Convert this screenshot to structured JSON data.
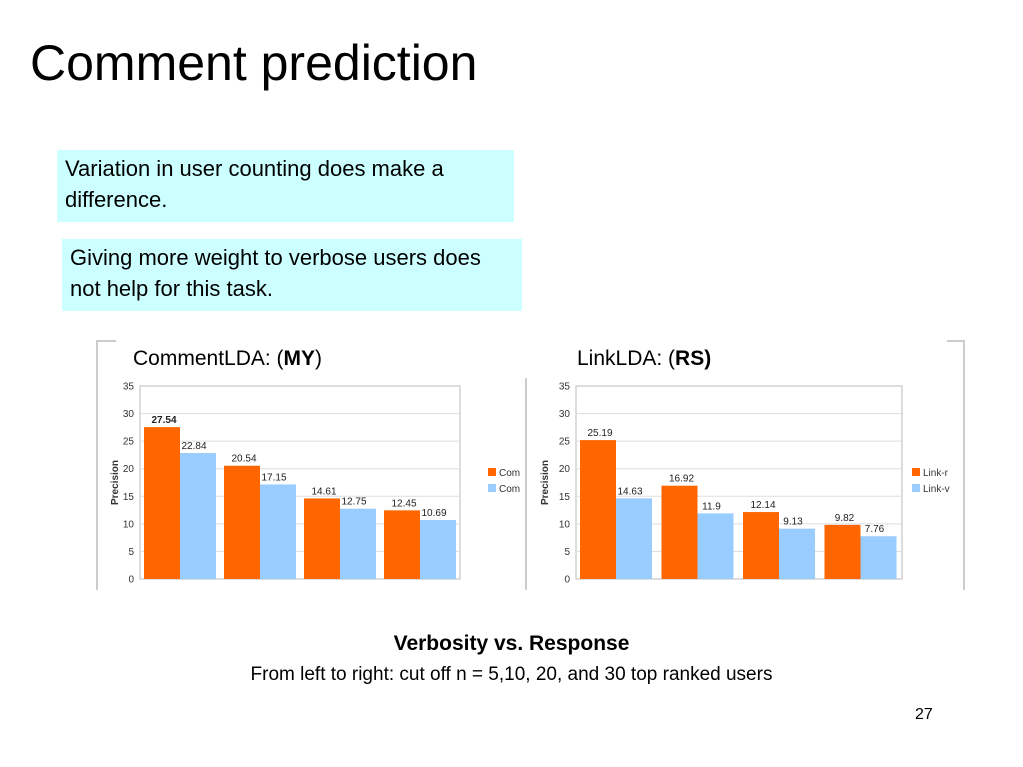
{
  "slide": {
    "title": "Comment prediction",
    "callout1": "Variation in user counting does make a difference.",
    "callout2": "Giving more weight to verbose users does not help for this task.",
    "caption_title": "Verbosity vs. Response",
    "caption_subtitle": "From left to right: cut off n = 5,10, 20, and 30 top ranked users",
    "page_number": "27",
    "colors": {
      "orange": "#ff6600",
      "blue": "#99ccff",
      "callout_bg": "#ccffff"
    }
  },
  "chart_data": [
    {
      "type": "bar",
      "label_prefix": "CommentLDA: (",
      "label_bold": "MY",
      "label_suffix": ")",
      "ylabel": "Precision",
      "ylim": [
        0,
        35
      ],
      "yticks": [
        0,
        5,
        10,
        15,
        20,
        25,
        30,
        35
      ],
      "legend_position": "right",
      "categories": [
        "",
        "",
        "",
        ""
      ],
      "series": [
        {
          "name": "Com",
          "color": "#ff6600",
          "values": [
            27.54,
            20.54,
            14.61,
            12.45
          ],
          "labels": [
            "27.54",
            "20.54",
            "14.61",
            "12.45"
          ]
        },
        {
          "name": "Com",
          "color": "#99ccff",
          "values": [
            22.84,
            17.15,
            12.75,
            10.69
          ],
          "labels": [
            "22.84",
            "17.15",
            "12.75",
            "10.69"
          ]
        }
      ]
    },
    {
      "type": "bar",
      "label_prefix": "LinkLDA: (",
      "label_bold": "RS)",
      "label_suffix": "",
      "ylabel": "Precision",
      "ylim": [
        0,
        35
      ],
      "yticks": [
        0,
        5,
        10,
        15,
        20,
        25,
        30,
        35
      ],
      "legend_position": "right",
      "categories": [
        "",
        "",
        "",
        ""
      ],
      "series": [
        {
          "name": "Link-r",
          "color": "#ff6600",
          "values": [
            25.19,
            16.92,
            12.14,
            9.82
          ],
          "labels": [
            "25.19",
            "16.92",
            "12.14",
            "9.82"
          ]
        },
        {
          "name": "Link-v",
          "color": "#99ccff",
          "values": [
            14.63,
            11.9,
            9.13,
            7.76
          ],
          "labels": [
            "14.63",
            "11.9",
            "9.13",
            "7.76"
          ]
        }
      ]
    }
  ]
}
